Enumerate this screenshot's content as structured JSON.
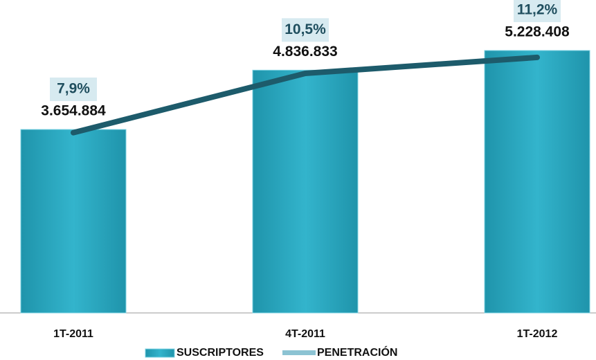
{
  "chart_data": {
    "type": "bar",
    "categories": [
      "1T-2011",
      "4T-2011",
      "1T-2012"
    ],
    "series": [
      {
        "name": "SUSCRIPTORES",
        "color": "#2ba9c1",
        "values": [
          3654884,
          4836833,
          5228408
        ],
        "value_labels": [
          "3.654.884",
          "4.836.833",
          "5.228.408"
        ]
      },
      {
        "name": "PENETRACIÓN",
        "color": "#1d5b6b",
        "axis": "y2",
        "type": "line",
        "values": [
          7.9,
          10.5,
          11.2
        ],
        "value_labels": [
          "7,9%",
          "10,5%",
          "11,2%"
        ]
      }
    ],
    "ylim": [
      0,
      6000000
    ],
    "y2lim": [
      0,
      13.2
    ],
    "legend": "bottom"
  }
}
